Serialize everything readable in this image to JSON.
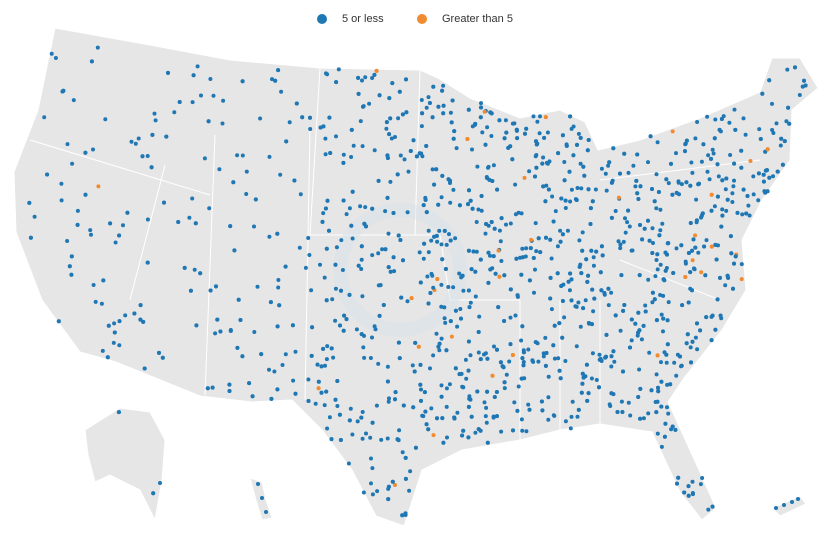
{
  "legend": {
    "items": [
      {
        "label": "5 or less",
        "color": "#1f77b4"
      },
      {
        "label": "Greater than 5",
        "color": "#f28a30"
      }
    ]
  }
}
